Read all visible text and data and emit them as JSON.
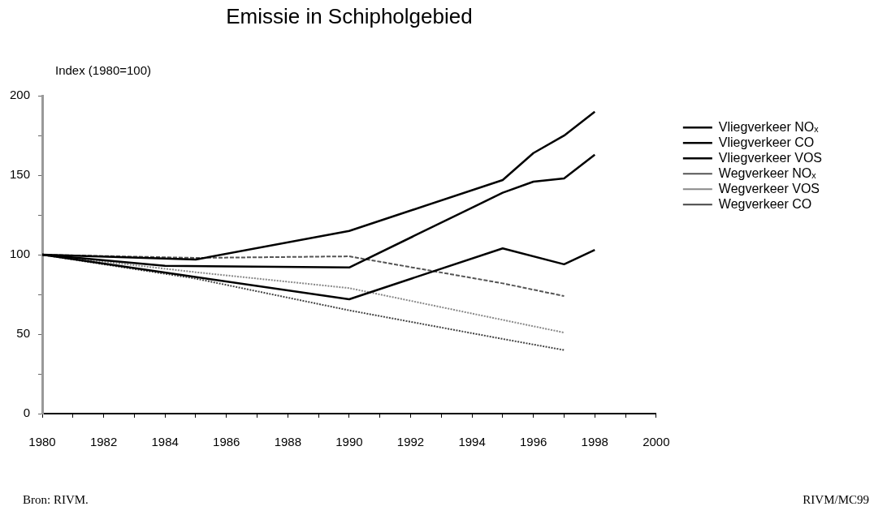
{
  "chart_data": {
    "type": "line",
    "title": "Emissie in Schipholgebied",
    "ylabel": "Index (1980=100)",
    "xlim": [
      1980,
      2000
    ],
    "xticks": [
      1980,
      {
        "value": 1981,
        "label": null
      },
      1982,
      {
        "value": 1983,
        "label": null
      },
      1984,
      {
        "value": 1985,
        "label": null
      },
      1986,
      {
        "value": 1987,
        "label": null
      },
      1988,
      {
        "value": 1989,
        "label": null
      },
      1990,
      {
        "value": 1991,
        "label": null
      },
      1992,
      {
        "value": 1993,
        "label": null
      },
      1994,
      {
        "value": 1995,
        "label": null
      },
      1996,
      {
        "value": 1997,
        "label": null
      },
      1998,
      {
        "value": 1999,
        "label": null
      },
      2000
    ],
    "ylim": [
      0,
      200
    ],
    "yticks": [
      0,
      {
        "value": 25,
        "label": null
      },
      50,
      {
        "value": 75,
        "label": null
      },
      100,
      {
        "value": 125,
        "label": null
      },
      150,
      {
        "value": 175,
        "label": null
      },
      200
    ],
    "grid": false,
    "legend": "top right",
    "series": [
      {
        "name": "Vliegverkeer NOₓ",
        "color": "#000000",
        "line_style": "solid",
        "x": [
          1980,
          1985,
          1990,
          1995,
          1996,
          1997,
          1998
        ],
        "values": [
          100,
          97,
          115,
          147,
          164,
          175,
          190
        ]
      },
      {
        "name": "Vliegverkeer CO",
        "color": "#000000",
        "line_style": "solid",
        "x": [
          1980,
          1984,
          1990,
          1995,
          1996,
          1997,
          1998
        ],
        "values": [
          100,
          93,
          92,
          139,
          146,
          148,
          163
        ]
      },
      {
        "name": "Vliegverkeer VOS",
        "color": "#000000",
        "line_style": "solid",
        "x": [
          1980,
          1990,
          1995,
          1997,
          1998
        ],
        "values": [
          100,
          72,
          104,
          94,
          103
        ]
      },
      {
        "name": "Wegverkeer NOₓ",
        "color": "#555555",
        "line_style": "dashed",
        "x": [
          1980,
          1985,
          1990,
          1995,
          1997
        ],
        "values": [
          100,
          98,
          99,
          82,
          74
        ]
      },
      {
        "name": "Wegverkeer VOS",
        "color": "#888888",
        "line_style": "dotted",
        "x": [
          1980,
          1985,
          1990,
          1995,
          1997
        ],
        "values": [
          100,
          89,
          79,
          59,
          51
        ]
      },
      {
        "name": "Wegverkeer CO",
        "color": "#444444",
        "line_style": "dotted",
        "x": [
          1980,
          1985,
          1990,
          1995,
          1997
        ],
        "values": [
          100,
          85,
          65,
          47,
          40
        ]
      }
    ],
    "annotations": [
      "Bron: RIVM.",
      "RIVM/MC99"
    ]
  }
}
